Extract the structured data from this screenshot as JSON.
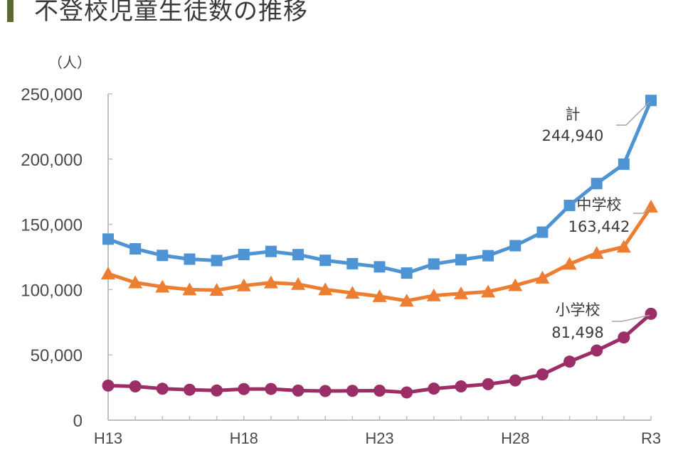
{
  "title": "不登校児童生徒数の推移",
  "colors": {
    "title_bar": "#5b6b2e",
    "total": "#4e94d4",
    "junior": "#ed7d31",
    "elementary": "#9c2e67",
    "axis": "#bfbfbf"
  },
  "chart_data": {
    "type": "line",
    "title": "不登校児童生徒数の推移",
    "ylabel": "（人）",
    "xlabel": "",
    "ylim": [
      0,
      250000
    ],
    "yticks": [
      0,
      50000,
      100000,
      150000,
      200000,
      250000
    ],
    "ytick_labels": [
      "0",
      "50,000",
      "100,000",
      "150,000",
      "200,000",
      "250,000"
    ],
    "x": [
      "H13",
      "H14",
      "H15",
      "H16",
      "H17",
      "H18",
      "H19",
      "H20",
      "H21",
      "H22",
      "H23",
      "H24",
      "H25",
      "H26",
      "H27",
      "H28",
      "H29",
      "H30",
      "R1",
      "R2",
      "R3"
    ],
    "xtick_labels_shown": [
      "H13",
      "H18",
      "H23",
      "H28",
      "R3"
    ],
    "grid": false,
    "legend_position": "inline annotations at right end",
    "series": [
      {
        "name": "計",
        "marker": "square",
        "color": "#4e94d4",
        "values": [
          138722,
          131252,
          126226,
          123358,
          122287,
          126894,
          129255,
          126805,
          122432,
          119891,
          117458,
          112689,
          119617,
          122897,
          125991,
          133683,
          144031,
          164528,
          181272,
          196127,
          244940
        ]
      },
      {
        "name": "中学校",
        "marker": "triangle",
        "color": "#ed7d31",
        "values": [
          112211,
          105383,
          102149,
          100040,
          99578,
          103069,
          105328,
          104153,
          100105,
          97428,
          94836,
          91446,
          95442,
          97033,
          98408,
          103235,
          108999,
          119687,
          127922,
          132777,
          163442
        ]
      },
      {
        "name": "小学校",
        "marker": "circle",
        "color": "#9c2e67",
        "values": [
          26511,
          25869,
          24077,
          23318,
          22709,
          23825,
          23927,
          22652,
          22327,
          22463,
          22622,
          21243,
          24175,
          25864,
          27583,
          30448,
          35032,
          44841,
          53350,
          63350,
          81498
        ]
      }
    ],
    "annotations": [
      {
        "series": "計",
        "label": "計",
        "value": "244,940"
      },
      {
        "series": "中学校",
        "label": "中学校",
        "value": "163,442"
      },
      {
        "series": "小学校",
        "label": "小学校",
        "value": "81,498"
      }
    ]
  }
}
